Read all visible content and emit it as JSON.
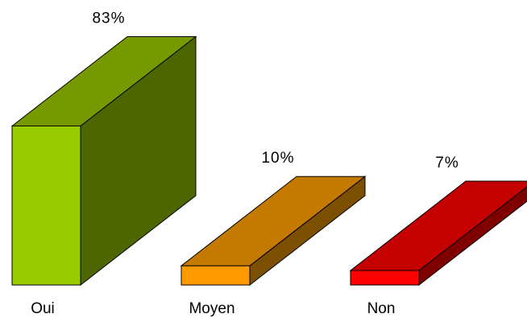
{
  "chart_data": {
    "type": "bar",
    "title": "",
    "xlabel": "",
    "ylabel": "",
    "ylim": [
      0,
      100
    ],
    "grid": false,
    "legend": "none",
    "categories": [
      "Oui",
      "Moyen",
      "Non"
    ],
    "values": [
      83,
      10,
      7
    ],
    "value_labels": [
      "83%",
      "10%",
      "7%"
    ],
    "colors": [
      {
        "front": "#99cc00",
        "top": "#779900",
        "side": "#4d6600"
      },
      {
        "front": "#ff9900",
        "top": "#c47a00",
        "side": "#7d4f00"
      },
      {
        "front": "#ff0000",
        "top": "#c40000",
        "side": "#800000"
      }
    ]
  }
}
